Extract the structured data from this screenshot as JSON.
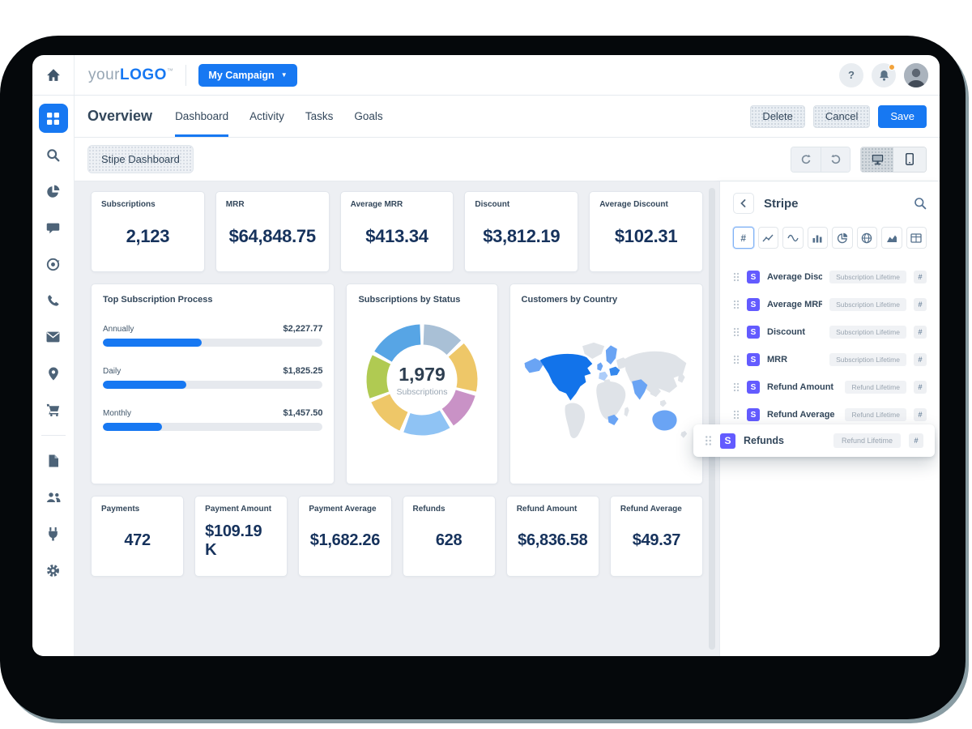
{
  "topbar": {
    "logo_prefix": "your",
    "logo_bold": "LOGO",
    "logo_tm": "TM",
    "campaign_button": "My Campaign",
    "help_label": "?"
  },
  "header": {
    "title": "Overview",
    "tabs": [
      {
        "label": "Dashboard",
        "active": true
      },
      {
        "label": "Activity",
        "active": false
      },
      {
        "label": "Tasks",
        "active": false
      },
      {
        "label": "Goals",
        "active": false
      }
    ],
    "delete_label": "Delete",
    "cancel_label": "Cancel",
    "save_label": "Save"
  },
  "toolbar": {
    "dashboard_chip": "Stipe Dashboard"
  },
  "sidebar": {
    "icons": [
      "apps",
      "search",
      "pie-chart",
      "chat",
      "campaign",
      "phone",
      "mail",
      "location",
      "cart",
      "document",
      "users",
      "plug",
      "settings"
    ],
    "active": "apps"
  },
  "stat_cards_top": [
    {
      "label": "Subscriptions",
      "value": "2,123"
    },
    {
      "label": "MRR",
      "value": "$64,848.75"
    },
    {
      "label": "Average MRR",
      "value": "$413.34"
    },
    {
      "label": "Discount",
      "value": "$3,812.19"
    },
    {
      "label": "Average Discount",
      "value": "$102.31"
    }
  ],
  "stat_cards_bottom": [
    {
      "label": "Payments",
      "value": "472"
    },
    {
      "label": "Payment Amount",
      "value": "$109.19 K"
    },
    {
      "label": "Payment Average",
      "value": "$1,682.26"
    },
    {
      "label": "Refunds",
      "value": "628"
    },
    {
      "label": "Refund Amount",
      "value": "$6,836.58"
    },
    {
      "label": "Refund Average",
      "value": "$49.37"
    }
  ],
  "chart_data": [
    {
      "type": "bar",
      "title": "Top Subscription Process",
      "categories": [
        "Annually",
        "Daily",
        "Monthly"
      ],
      "values": [
        2227.77,
        1825.25,
        1457.5
      ],
      "value_labels": [
        "$2,227.77",
        "$1,825.25",
        "$1,457.50"
      ],
      "bar_fill_pct": [
        45,
        38,
        27
      ],
      "bar_color": "#1778f2",
      "track_color": "#e6e9ee"
    },
    {
      "type": "pie",
      "title": "Subscriptions by Status",
      "center_value": "1,979",
      "center_label": "Subscriptions",
      "segments": [
        {
          "color": "#a9c0d6",
          "pct": 13
        },
        {
          "color": "#eec768",
          "pct": 16
        },
        {
          "color": "#c992c6",
          "pct": 12
        },
        {
          "color": "#8fc3f4",
          "pct": 15
        },
        {
          "color": "#eec768",
          "pct": 13
        },
        {
          "color": "#b0ca52",
          "pct": 14
        },
        {
          "color": "#57a5e5",
          "pct": 17
        }
      ]
    },
    {
      "type": "map",
      "title": "Customers by Country",
      "highlight_primary": [
        "United States",
        "Canada",
        "Mexico"
      ],
      "highlight_secondary": [
        "Alaska",
        "Scandinavia",
        "United Kingdom",
        "Poland",
        "France",
        "India",
        "Australia",
        "South Africa"
      ],
      "primary_color": "#1273ea",
      "secondary_color": "#6aa4f4",
      "land_color": "#dfe3e8"
    }
  ],
  "panel": {
    "title": "Stripe",
    "icon_tabs": [
      "number",
      "line-chart",
      "wave",
      "column-chart",
      "pie-chart",
      "globe",
      "area-chart",
      "table"
    ],
    "active_tab": "number",
    "hash_glyph": "#",
    "source_glyph": "S",
    "fields": [
      {
        "name": "Average Discount",
        "badge": "Subscription Lifetime"
      },
      {
        "name": "Average MRR",
        "badge": "Subscription Lifetime"
      },
      {
        "name": "Discount",
        "badge": "Subscription Lifetime"
      },
      {
        "name": "MRR",
        "badge": "Subscription Lifetime"
      },
      {
        "name": "Refund Amount",
        "badge": "Refund Lifetime"
      },
      {
        "name": "Refund Average",
        "badge": "Refund Lifetime"
      }
    ],
    "floating_field": {
      "name": "Refunds",
      "badge": "Refund Lifetime"
    }
  },
  "colors": {
    "accent_blue": "#1778f2",
    "stripe_purple": "#635bff",
    "navy_text": "#33475b",
    "value_text": "#16325c",
    "notification_orange": "#f2a33c"
  }
}
